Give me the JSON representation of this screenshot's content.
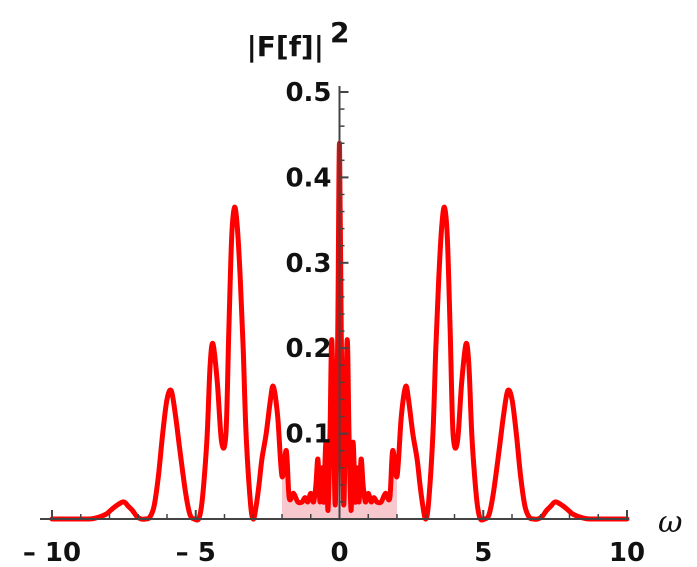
{
  "chart_data": {
    "type": "area",
    "title": "",
    "xlabel": "ω",
    "ylabel": "|F[f]|",
    "ylabel_superscript": "2",
    "xlim": [
      -10,
      10
    ],
    "ylim": [
      0,
      0.5
    ],
    "x_ticks": [
      -10,
      -5,
      0,
      5,
      10
    ],
    "x_tick_labels": [
      "– 10",
      "– 5",
      "0",
      "5",
      "10"
    ],
    "y_ticks": [
      0.1,
      0.2,
      0.3,
      0.4,
      0.5
    ],
    "y_tick_labels": [
      "0.1",
      "0.2",
      "0.3",
      "0.4",
      "0.5"
    ],
    "grid": false,
    "line_color": "#ff0000",
    "fill_color": "#f7c9cf",
    "fill_intervals": [
      [
        -10,
        -9.4
      ],
      [
        -2,
        2
      ],
      [
        9.4,
        10
      ]
    ],
    "series": [
      {
        "x": [
          0,
          0.06,
          0.14,
          0.2,
          0.27,
          0.33,
          0.4,
          0.47,
          0.55,
          0.6,
          0.68,
          0.75,
          0.82,
          0.9,
          1.0,
          1.1,
          1.2,
          1.3,
          1.45,
          1.6,
          1.75,
          1.85,
          2.0,
          2.15,
          2.3,
          2.4,
          2.55,
          2.7,
          2.8,
          2.9,
          3.0,
          3.1,
          3.25,
          3.35,
          3.45,
          3.55,
          3.65,
          3.75,
          3.85,
          3.95,
          4.1,
          4.25,
          4.4,
          4.5,
          4.6,
          4.7,
          4.8,
          4.9,
          5.05,
          5.2,
          5.35,
          5.55,
          5.7,
          5.85,
          6.0,
          6.15,
          6.3,
          6.45,
          6.6,
          6.75,
          6.9,
          7.05,
          7.2,
          7.35,
          7.5,
          7.7,
          7.9,
          8.1,
          8.3,
          8.5,
          8.7,
          8.9,
          9.1,
          9.3,
          9.6,
          10.0
        ],
        "y": [
          0.44,
          0.22,
          0.02,
          0.1,
          0.21,
          0.1,
          0.01,
          0.09,
          0.02,
          0.06,
          0.02,
          0.07,
          0.04,
          0.02,
          0.03,
          0.02,
          0.025,
          0.02,
          0.02,
          0.03,
          0.025,
          0.08,
          0.05,
          0.12,
          0.155,
          0.14,
          0.1,
          0.07,
          0.04,
          0.015,
          0.0,
          0.02,
          0.1,
          0.2,
          0.28,
          0.34,
          0.365,
          0.33,
          0.22,
          0.1,
          0.09,
          0.16,
          0.205,
          0.18,
          0.1,
          0.05,
          0.015,
          0.0,
          0.0,
          0.005,
          0.03,
          0.08,
          0.12,
          0.15,
          0.14,
          0.1,
          0.05,
          0.015,
          0.002,
          0.0,
          0.0,
          0.003,
          0.01,
          0.015,
          0.02,
          0.017,
          0.012,
          0.006,
          0.003,
          0.001,
          0.0,
          0.0,
          0.0,
          0.0,
          0.0,
          0.0
        ]
      }
    ]
  }
}
